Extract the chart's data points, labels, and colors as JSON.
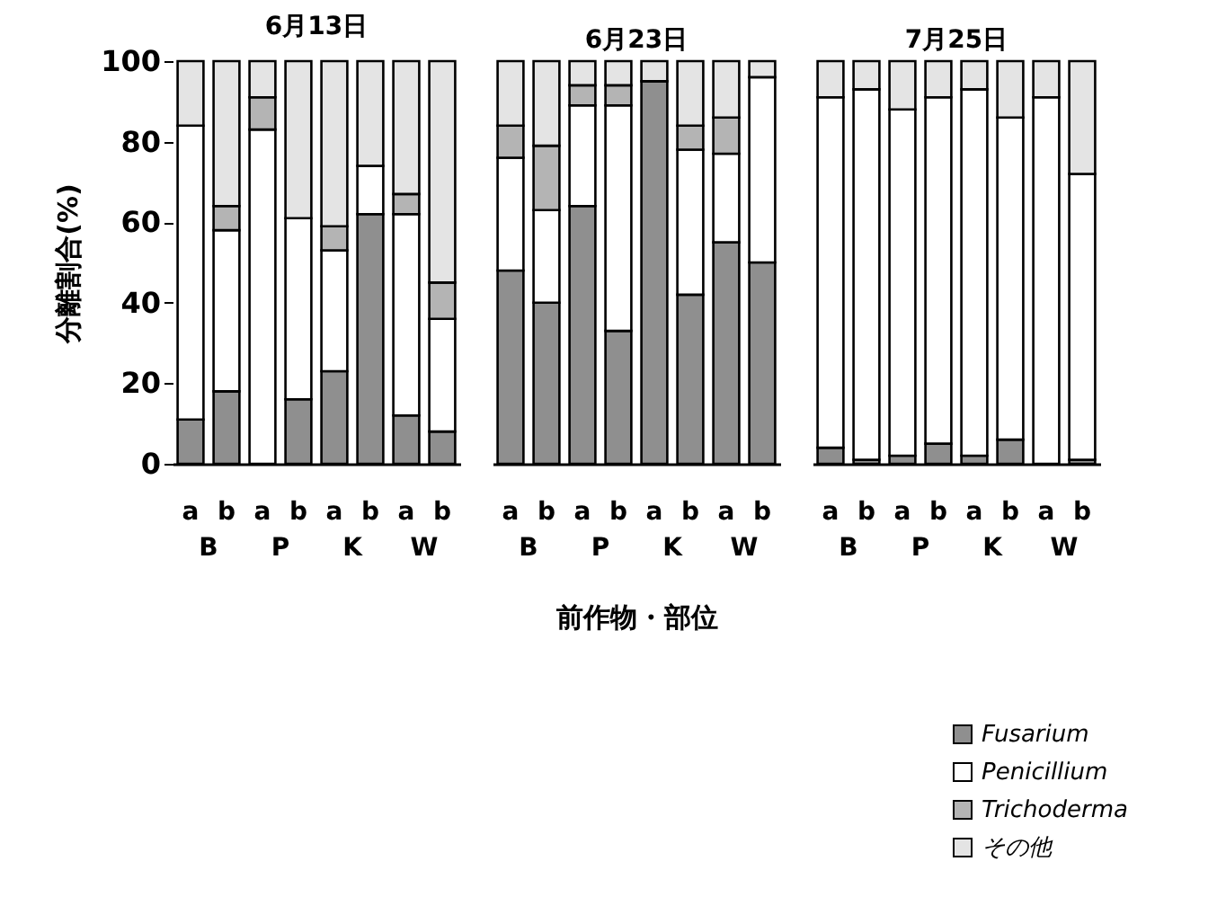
{
  "chart_data": [
    {
      "type": "bar",
      "stacked": true,
      "title": "6月13日",
      "ylabel": "分離割合(%)",
      "ylim": [
        0,
        100
      ],
      "yticks": [
        0,
        20,
        40,
        60,
        80,
        100
      ],
      "grid": false,
      "legend": "bottom right",
      "categories": [
        "a",
        "b",
        "a",
        "b",
        "a",
        "b",
        "a",
        "b"
      ],
      "annotations": [
        "B",
        "P",
        "K",
        "W"
      ],
      "series": [
        {
          "name": "Fusarium",
          "color": "#8f8f8f",
          "values": [
            11,
            18,
            0,
            16,
            23,
            62,
            12,
            8
          ]
        },
        {
          "name": "Penicillium",
          "color": "#ffffff",
          "values": [
            73,
            40,
            83,
            45,
            30,
            12,
            50,
            28
          ]
        },
        {
          "name": "Trichoderma",
          "color": "#b4b4b4",
          "values": [
            0,
            6,
            8,
            0,
            6,
            0,
            5,
            9
          ]
        },
        {
          "name": "その他",
          "color": "#e4e4e4",
          "values": [
            16,
            36,
            9,
            39,
            41,
            26,
            33,
            55
          ]
        }
      ]
    },
    {
      "type": "bar",
      "stacked": true,
      "title": "6月23日",
      "xlabel": "前作物・部位",
      "ylim": [
        0,
        100
      ],
      "tick_labels": "x",
      "grid": false,
      "legend": "bottom right",
      "categories": [
        "a",
        "b",
        "a",
        "b",
        "a",
        "b",
        "a",
        "b"
      ],
      "annotations": [
        "B",
        "P",
        "K",
        "W"
      ],
      "series": [
        {
          "name": "Fusarium",
          "color": "#8f8f8f",
          "values": [
            48,
            40,
            64,
            33,
            95,
            42,
            55,
            50
          ]
        },
        {
          "name": "Penicillium",
          "color": "#ffffff",
          "values": [
            28,
            23,
            25,
            56,
            0,
            36,
            22,
            46
          ]
        },
        {
          "name": "Trichoderma",
          "color": "#b4b4b4",
          "values": [
            8,
            16,
            5,
            5,
            0,
            6,
            9,
            0
          ]
        },
        {
          "name": "その他",
          "color": "#e4e4e4",
          "values": [
            16,
            21,
            6,
            6,
            5,
            16,
            14,
            4
          ]
        }
      ]
    },
    {
      "type": "bar",
      "stacked": true,
      "title": "7月25日",
      "ylim": [
        0,
        100
      ],
      "tick_labels": "x",
      "grid": false,
      "legend": "bottom right",
      "categories": [
        "a",
        "b",
        "a",
        "b",
        "a",
        "b",
        "a",
        "b"
      ],
      "annotations": [
        "B",
        "P",
        "K",
        "W"
      ],
      "series": [
        {
          "name": "Fusarium",
          "color": "#8f8f8f",
          "values": [
            4,
            1,
            2,
            5,
            2,
            6,
            0,
            1
          ]
        },
        {
          "name": "Penicillium",
          "color": "#ffffff",
          "values": [
            87,
            92,
            86,
            86,
            91,
            80,
            91,
            71
          ]
        },
        {
          "name": "Trichoderma",
          "color": "#b4b4b4",
          "values": [
            0,
            0,
            0,
            0,
            0,
            0,
            0,
            0
          ]
        },
        {
          "name": "その他",
          "color": "#e4e4e4",
          "values": [
            9,
            7,
            12,
            9,
            7,
            14,
            9,
            28
          ]
        }
      ]
    }
  ]
}
